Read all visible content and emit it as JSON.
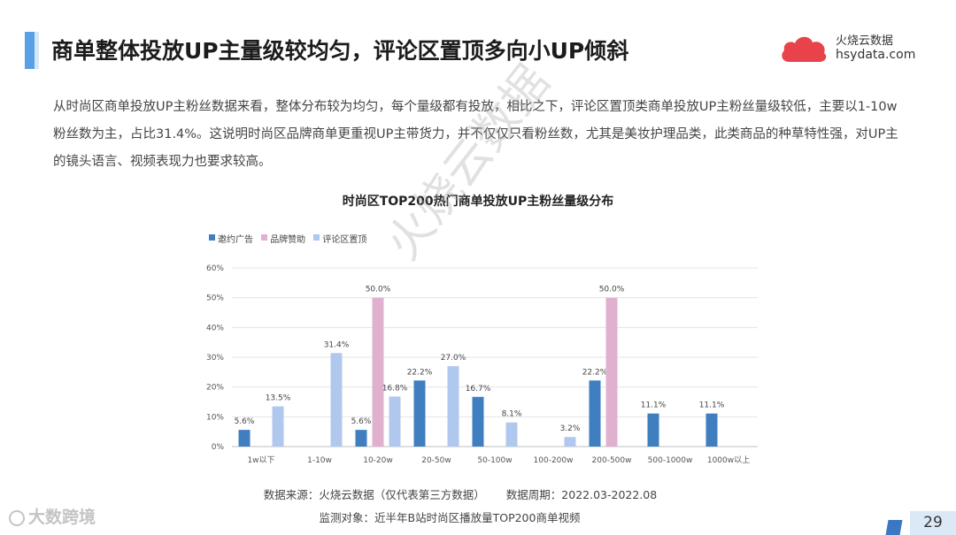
{
  "header": {
    "title": "商单整体投放UP主量级较均匀，评论区置顶多向小UP倾斜",
    "brand_name": "火烧云数据",
    "brand_domain": "hsydata.com"
  },
  "description": "从时尚区商单投放UP主粉丝数据来看，整体分布较为均匀，每个量级都有投放，相比之下，评论区置顶类商单投放UP主粉丝量级较低，主要以1-10w粉丝数为主，占比31.4%。这说明时尚区品牌商单更重视UP主带货力，并不仅仅只看粉丝数，尤其是美妆护理品类，此类商品的种草特性强，对UP主的镜头语言、视频表现力也要求较高。",
  "watermark": "火烧云数据",
  "chart_data": {
    "type": "bar",
    "title": "时尚区TOP200热门商单投放UP主粉丝量级分布",
    "categories": [
      "1w以下",
      "1-10w",
      "10-20w",
      "20-50w",
      "50-100w",
      "100-200w",
      "200-500w",
      "500-1000w",
      "1000w以上"
    ],
    "series": [
      {
        "name": "邀约广告",
        "color": "#3f7ebf",
        "values": [
          5.6,
          null,
          5.6,
          22.2,
          16.7,
          null,
          22.2,
          11.1,
          11.1
        ]
      },
      {
        "name": "品牌赞助",
        "color": "#e0b0cf",
        "values": [
          null,
          null,
          50.0,
          null,
          null,
          null,
          50.0,
          null,
          null
        ]
      },
      {
        "name": "评论区置顶",
        "color": "#b0c8ee",
        "values": [
          13.5,
          31.4,
          16.8,
          27.0,
          8.1,
          3.2,
          null,
          null,
          null
        ]
      }
    ],
    "ylim": [
      0,
      60
    ],
    "yticks": [
      0,
      10,
      20,
      30,
      40,
      50,
      60
    ],
    "ytick_labels": [
      "0%",
      "10%",
      "20%",
      "30%",
      "40%",
      "50%",
      "60%"
    ],
    "grid": true,
    "legend_position": "top-left",
    "value_format": "percent-1dp"
  },
  "footer": {
    "source": "数据来源：火烧云数据（仅代表第三方数据）",
    "period": "数据周期：2022.03-2022.08",
    "monitor": "监测对象：近半年B站时尚区播放量TOP200商单视频",
    "corner_logo": "大数跨境",
    "page_number": "29"
  }
}
